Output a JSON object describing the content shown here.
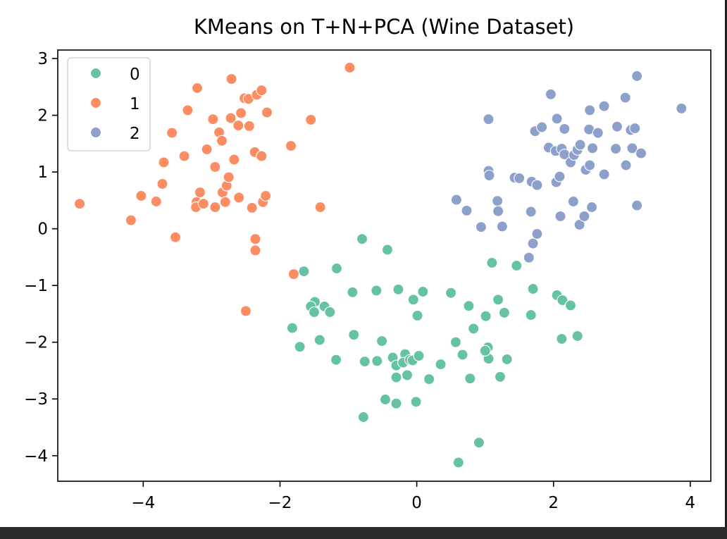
{
  "chart_data": {
    "type": "scatter",
    "title": "KMeans on T+N+PCA (Wine Dataset)",
    "xlabel": "",
    "ylabel": "",
    "xlim": [
      -5.25,
      4.3
    ],
    "ylim": [
      -4.45,
      3.15
    ],
    "xticks": [
      -4,
      -2,
      0,
      2,
      4
    ],
    "yticks": [
      -4,
      -3,
      -2,
      -1,
      0,
      1,
      2,
      3
    ],
    "xtick_labels": [
      "−4",
      "−2",
      "0",
      "2",
      "4"
    ],
    "ytick_labels": [
      "−4",
      "−3",
      "−2",
      "−1",
      "0",
      "1",
      "2",
      "3"
    ],
    "grid": false,
    "legend": {
      "position": "top-left",
      "title": ""
    },
    "series": [
      {
        "name": "0",
        "color": "#66c2a5",
        "points": [
          [
            -0.8,
            -0.18
          ],
          [
            -0.43,
            -0.37
          ],
          [
            -1.65,
            -0.75
          ],
          [
            -1.17,
            -0.7
          ],
          [
            -1.82,
            -1.75
          ],
          [
            -1.71,
            -2.08
          ],
          [
            -1.49,
            -1.29
          ],
          [
            -1.55,
            -1.37
          ],
          [
            -1.5,
            -1.47
          ],
          [
            -1.35,
            -1.37
          ],
          [
            -1.27,
            -1.47
          ],
          [
            -1.42,
            -1.96
          ],
          [
            -1.18,
            -2.31
          ],
          [
            -0.94,
            -1.12
          ],
          [
            -0.92,
            -1.87
          ],
          [
            -0.59,
            -1.09
          ],
          [
            -0.51,
            -1.98
          ],
          [
            -0.76,
            -2.34
          ],
          [
            -0.58,
            -2.33
          ],
          [
            -0.35,
            -2.27
          ],
          [
            -0.27,
            -1.07
          ],
          [
            -0.17,
            -2.21
          ],
          [
            -0.3,
            -2.41
          ],
          [
            -0.2,
            -2.36
          ],
          [
            -0.1,
            -2.31
          ],
          [
            -0.3,
            -2.62
          ],
          [
            -0.14,
            -2.58
          ],
          [
            -0.06,
            -2.32
          ],
          [
            0.03,
            -2.24
          ],
          [
            0.18,
            -2.65
          ],
          [
            -0.05,
            -1.25
          ],
          [
            0.01,
            -1.53
          ],
          [
            0.09,
            -1.11
          ],
          [
            0.35,
            -2.39
          ],
          [
            0.5,
            -1.13
          ],
          [
            0.57,
            -2.0
          ],
          [
            0.67,
            -2.22
          ],
          [
            0.76,
            -1.36
          ],
          [
            0.83,
            -1.76
          ],
          [
            0.78,
            -2.64
          ],
          [
            1.01,
            -1.54
          ],
          [
            1.04,
            -2.09
          ],
          [
            1.05,
            -2.29
          ],
          [
            1.0,
            -2.15
          ],
          [
            1.19,
            -1.25
          ],
          [
            1.28,
            -1.48
          ],
          [
            1.22,
            -2.61
          ],
          [
            1.32,
            -2.3
          ],
          [
            1.1,
            -0.6
          ],
          [
            1.46,
            -0.65
          ],
          [
            1.7,
            -1.06
          ],
          [
            1.67,
            -1.52
          ],
          [
            2.05,
            -1.17
          ],
          [
            2.13,
            -1.26
          ],
          [
            2.25,
            -1.35
          ],
          [
            2.12,
            -1.94
          ],
          [
            2.35,
            -1.89
          ],
          [
            -0.46,
            -3.01
          ],
          [
            -0.3,
            -3.08
          ],
          [
            -0.01,
            -3.05
          ],
          [
            -0.78,
            -3.32
          ],
          [
            0.91,
            -3.77
          ],
          [
            0.61,
            -4.12
          ]
        ]
      },
      {
        "name": "1",
        "color": "#fc8d62",
        "points": [
          [
            -4.93,
            0.44
          ],
          [
            -4.18,
            0.15
          ],
          [
            -4.03,
            0.58
          ],
          [
            -3.81,
            0.48
          ],
          [
            -3.72,
            0.79
          ],
          [
            -3.7,
            1.17
          ],
          [
            -3.58,
            1.69
          ],
          [
            -3.53,
            -0.15
          ],
          [
            -3.4,
            1.28
          ],
          [
            -3.35,
            2.09
          ],
          [
            -3.21,
            2.48
          ],
          [
            -3.22,
            0.47
          ],
          [
            -3.23,
            0.38
          ],
          [
            -3.17,
            0.64
          ],
          [
            -3.12,
            0.44
          ],
          [
            -3.07,
            1.4
          ],
          [
            -2.98,
            1.93
          ],
          [
            -2.95,
            0.38
          ],
          [
            -2.95,
            1.09
          ],
          [
            -2.89,
            1.7
          ],
          [
            -2.85,
            1.55
          ],
          [
            -2.84,
            0.64
          ],
          [
            -2.8,
            0.47
          ],
          [
            -2.78,
            0.76
          ],
          [
            -2.75,
            0.91
          ],
          [
            -2.72,
            1.95
          ],
          [
            -2.71,
            2.64
          ],
          [
            -2.67,
            1.22
          ],
          [
            -2.61,
            1.82
          ],
          [
            -2.6,
            0.55
          ],
          [
            -2.57,
            2.04
          ],
          [
            -2.52,
            2.3
          ],
          [
            -2.45,
            1.81
          ],
          [
            -2.46,
            2.29
          ],
          [
            -2.41,
            0.37
          ],
          [
            -2.37,
            1.35
          ],
          [
            -2.34,
            2.36
          ],
          [
            -2.27,
            2.44
          ],
          [
            -2.27,
            1.28
          ],
          [
            -2.25,
            0.47
          ],
          [
            -2.21,
            0.58
          ],
          [
            -2.19,
            2.05
          ],
          [
            -2.36,
            -0.18
          ],
          [
            -2.36,
            -0.38
          ],
          [
            -2.5,
            -1.45
          ],
          [
            -1.84,
            1.46
          ],
          [
            -1.8,
            -0.8
          ],
          [
            -1.55,
            1.92
          ],
          [
            -1.41,
            0.38
          ],
          [
            -0.98,
            2.84
          ]
        ]
      },
      {
        "name": "2",
        "color": "#8da0cb",
        "points": [
          [
            0.58,
            0.51
          ],
          [
            0.73,
            0.32
          ],
          [
            0.94,
            0.03
          ],
          [
            1.05,
            1.93
          ],
          [
            1.05,
            1.02
          ],
          [
            1.06,
            0.94
          ],
          [
            1.18,
            0.49
          ],
          [
            1.19,
            0.31
          ],
          [
            1.25,
            0.04
          ],
          [
            1.43,
            0.9
          ],
          [
            1.5,
            0.89
          ],
          [
            1.68,
            0.83
          ],
          [
            1.67,
            0.3
          ],
          [
            1.7,
            -0.26
          ],
          [
            1.76,
            0.77
          ],
          [
            1.64,
            -0.51
          ],
          [
            1.76,
            -0.09
          ],
          [
            1.73,
            1.72
          ],
          [
            1.83,
            1.79
          ],
          [
            1.93,
            1.43
          ],
          [
            1.96,
            2.37
          ],
          [
            2.03,
            1.37
          ],
          [
            2.05,
            1.94
          ],
          [
            2.04,
            0.82
          ],
          [
            2.09,
            0.92
          ],
          [
            2.1,
            0.22
          ],
          [
            2.12,
            1.41
          ],
          [
            2.16,
            1.31
          ],
          [
            2.16,
            1.76
          ],
          [
            2.25,
            1.17
          ],
          [
            2.29,
            0.48
          ],
          [
            2.3,
            1.3
          ],
          [
            2.35,
            1.39
          ],
          [
            2.38,
            0.07
          ],
          [
            2.39,
            1.48
          ],
          [
            2.45,
            0.22
          ],
          [
            2.47,
            1.04
          ],
          [
            2.53,
            2.09
          ],
          [
            2.52,
            1.75
          ],
          [
            2.57,
            1.42
          ],
          [
            2.53,
            1.12
          ],
          [
            2.56,
            0.38
          ],
          [
            2.65,
            1.69
          ],
          [
            2.74,
            0.96
          ],
          [
            2.74,
            2.16
          ],
          [
            2.91,
            1.41
          ],
          [
            2.93,
            1.8
          ],
          [
            3.05,
            2.31
          ],
          [
            3.06,
            1.12
          ],
          [
            3.13,
            1.74
          ],
          [
            3.15,
            1.42
          ],
          [
            3.19,
            1.77
          ],
          [
            3.22,
            2.69
          ],
          [
            3.22,
            0.41
          ],
          [
            3.28,
            1.33
          ],
          [
            3.87,
            2.12
          ]
        ]
      }
    ]
  }
}
